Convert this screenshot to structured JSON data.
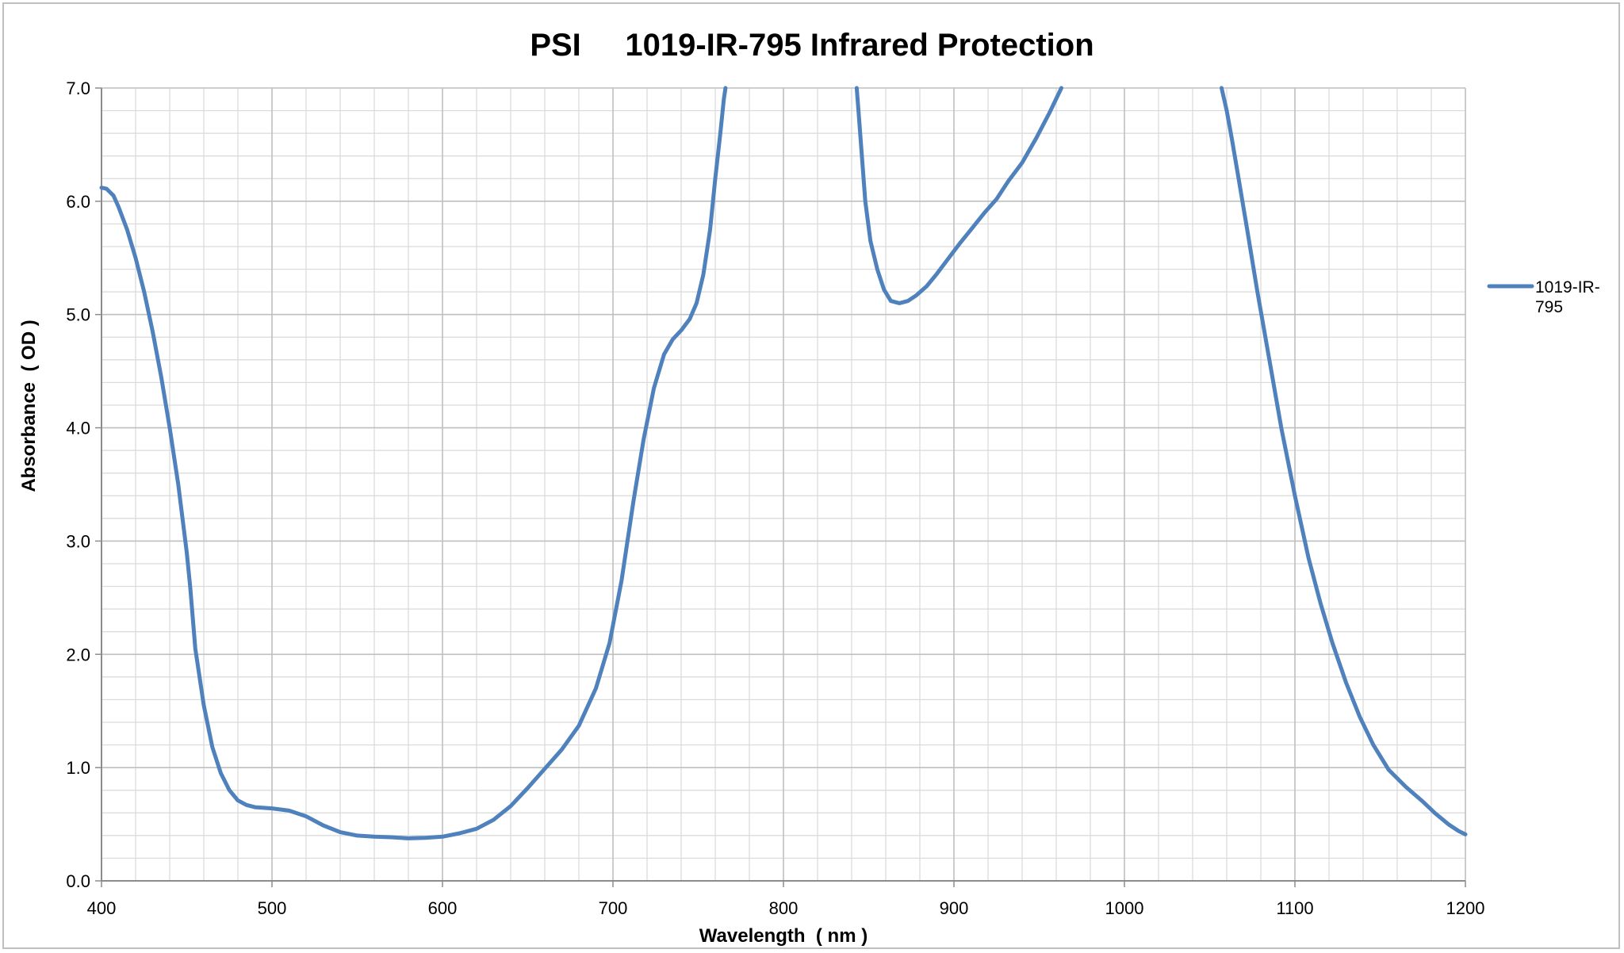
{
  "chart_data": {
    "type": "line",
    "title": "PSI     1019-IR-795 Infrared Protection",
    "xlabel": "Wavelength  ( nm )",
    "ylabel": "Absorbance  ( OD )",
    "xlim": [
      400,
      1200
    ],
    "ylim": [
      0,
      7
    ],
    "x_ticks": [
      400,
      500,
      600,
      700,
      800,
      900,
      1000,
      1100,
      1200
    ],
    "x_tick_labels": [
      "400",
      "500",
      "600",
      "700",
      "800",
      "900",
      "1000",
      "1100",
      "1200"
    ],
    "y_ticks": [
      0,
      1,
      2,
      3,
      4,
      5,
      6,
      7
    ],
    "y_tick_labels": [
      "0.0",
      "1.0",
      "2.0",
      "3.0",
      "4.0",
      "5.0",
      "6.0",
      "7.0"
    ],
    "x_minor_step": 20,
    "y_minor_step": 0.2,
    "grid": true,
    "legend_position": "right",
    "series": [
      {
        "name": "1019-IR-795",
        "legend_label_lines": [
          "1019-IR-",
          "795"
        ],
        "color": "#4f81bd",
        "segments": [
          [
            [
              400,
              6.12
            ],
            [
              403,
              6.11
            ],
            [
              407,
              6.05
            ],
            [
              410,
              5.95
            ],
            [
              415,
              5.75
            ],
            [
              420,
              5.5
            ],
            [
              425,
              5.2
            ],
            [
              430,
              4.85
            ],
            [
              435,
              4.45
            ],
            [
              440,
              4.0
            ],
            [
              445,
              3.5
            ],
            [
              450,
              2.9
            ],
            [
              452,
              2.6
            ],
            [
              455,
              2.05
            ],
            [
              460,
              1.55
            ],
            [
              465,
              1.18
            ],
            [
              470,
              0.95
            ],
            [
              475,
              0.8
            ],
            [
              480,
              0.71
            ],
            [
              485,
              0.67
            ],
            [
              490,
              0.65
            ],
            [
              500,
              0.64
            ],
            [
              510,
              0.62
            ],
            [
              520,
              0.57
            ],
            [
              530,
              0.49
            ],
            [
              540,
              0.43
            ],
            [
              550,
              0.4
            ],
            [
              560,
              0.39
            ],
            [
              570,
              0.385
            ],
            [
              580,
              0.375
            ],
            [
              590,
              0.38
            ],
            [
              600,
              0.39
            ],
            [
              610,
              0.42
            ],
            [
              620,
              0.46
            ],
            [
              630,
              0.54
            ],
            [
              640,
              0.66
            ],
            [
              650,
              0.82
            ],
            [
              660,
              0.99
            ],
            [
              670,
              1.16
            ],
            [
              680,
              1.37
            ],
            [
              690,
              1.7
            ],
            [
              698,
              2.1
            ],
            [
              705,
              2.65
            ],
            [
              712,
              3.35
            ],
            [
              718,
              3.9
            ],
            [
              724,
              4.35
            ],
            [
              730,
              4.65
            ],
            [
              735,
              4.78
            ],
            [
              740,
              4.86
            ],
            [
              745,
              4.96
            ],
            [
              749,
              5.1
            ],
            [
              753,
              5.35
            ],
            [
              757,
              5.75
            ],
            [
              760,
              6.2
            ],
            [
              763,
              6.6
            ],
            [
              765,
              6.9
            ],
            [
              766,
              7.0
            ]
          ],
          [
            [
              843,
              7.0
            ],
            [
              844,
              6.8
            ],
            [
              846,
              6.4
            ],
            [
              848,
              6.0
            ],
            [
              851,
              5.65
            ],
            [
              855,
              5.4
            ],
            [
              859,
              5.22
            ],
            [
              863,
              5.12
            ],
            [
              868,
              5.1
            ],
            [
              873,
              5.12
            ],
            [
              878,
              5.17
            ],
            [
              884,
              5.25
            ],
            [
              890,
              5.36
            ],
            [
              896,
              5.48
            ],
            [
              903,
              5.62
            ],
            [
              910,
              5.75
            ],
            [
              918,
              5.9
            ],
            [
              925,
              6.02
            ],
            [
              932,
              6.18
            ],
            [
              940,
              6.34
            ],
            [
              948,
              6.55
            ],
            [
              956,
              6.78
            ],
            [
              963,
              7.0
            ]
          ],
          [
            [
              1057,
              7.0
            ],
            [
              1060,
              6.8
            ],
            [
              1063,
              6.55
            ],
            [
              1067,
              6.2
            ],
            [
              1072,
              5.75
            ],
            [
              1078,
              5.2
            ],
            [
              1085,
              4.6
            ],
            [
              1092,
              4.0
            ],
            [
              1100,
              3.4
            ],
            [
              1108,
              2.85
            ],
            [
              1115,
              2.45
            ],
            [
              1122,
              2.1
            ],
            [
              1130,
              1.75
            ],
            [
              1138,
              1.45
            ],
            [
              1146,
              1.2
            ],
            [
              1155,
              0.98
            ],
            [
              1165,
              0.83
            ],
            [
              1175,
              0.7
            ],
            [
              1182,
              0.6
            ],
            [
              1190,
              0.5
            ],
            [
              1196,
              0.44
            ],
            [
              1200,
              0.41
            ]
          ]
        ]
      }
    ]
  }
}
